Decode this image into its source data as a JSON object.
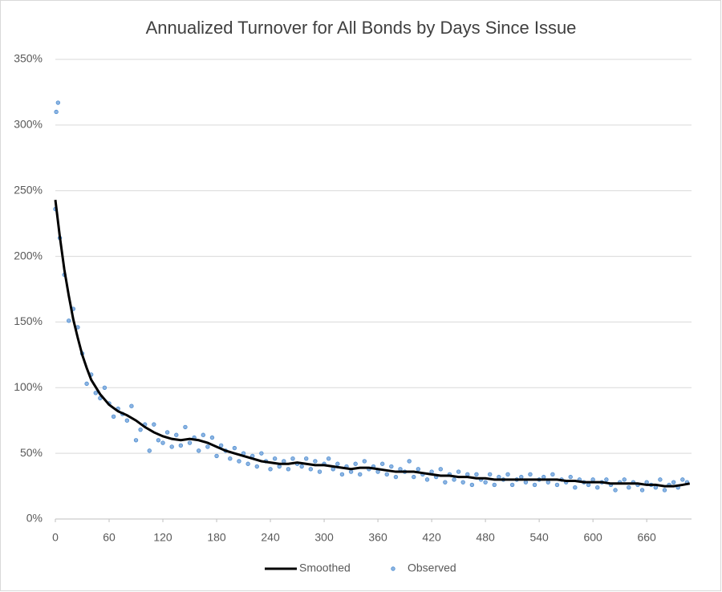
{
  "chart_data": {
    "type": "scatter",
    "title": "Annualized Turnover for All Bonds by Days Since Issue",
    "xlim": [
      0,
      710
    ],
    "xticks": [
      0,
      60,
      120,
      180,
      240,
      300,
      360,
      420,
      480,
      540,
      600,
      660
    ],
    "ylim": [
      0,
      350
    ],
    "yticks": [
      {
        "value": 0,
        "label": "0%"
      },
      {
        "value": 50,
        "label": "50%"
      },
      {
        "value": 100,
        "label": "100%"
      },
      {
        "value": 150,
        "label": "150%"
      },
      {
        "value": 200,
        "label": "200%"
      },
      {
        "value": 250,
        "label": "250%"
      },
      {
        "value": 300,
        "label": "300%"
      },
      {
        "value": 350,
        "label": "350%"
      }
    ],
    "grid": true,
    "legend": "bottom",
    "series": [
      {
        "name": "Smoothed",
        "kind": "line",
        "color": "#000000",
        "x": [
          0,
          5,
          10,
          15,
          20,
          25,
          30,
          35,
          40,
          50,
          60,
          70,
          80,
          90,
          100,
          110,
          120,
          130,
          140,
          150,
          160,
          170,
          180,
          190,
          200,
          210,
          220,
          230,
          240,
          250,
          260,
          270,
          280,
          290,
          300,
          310,
          320,
          330,
          340,
          350,
          360,
          370,
          380,
          390,
          400,
          410,
          420,
          430,
          440,
          450,
          460,
          470,
          480,
          490,
          500,
          510,
          520,
          530,
          540,
          550,
          560,
          570,
          580,
          590,
          600,
          610,
          620,
          630,
          640,
          650,
          660,
          670,
          680,
          690,
          700,
          708
        ],
        "values": [
          243,
          215,
          190,
          170,
          152,
          138,
          125,
          115,
          106,
          95,
          87,
          82,
          79,
          75,
          70,
          66,
          63,
          61,
          60,
          61,
          60,
          58,
          55,
          52,
          50,
          48,
          46,
          44,
          43,
          42,
          42,
          43,
          42,
          41,
          41,
          40,
          39,
          38,
          39,
          39,
          38,
          37,
          36,
          36,
          36,
          35,
          34,
          33,
          33,
          32,
          32,
          31,
          31,
          30,
          30,
          30,
          30,
          30,
          30,
          30,
          30,
          29,
          29,
          28,
          28,
          28,
          27,
          27,
          27,
          27,
          26,
          26,
          25,
          25,
          26,
          27
        ]
      },
      {
        "name": "Observed",
        "kind": "points",
        "color": "#8db4e2",
        "x": [
          1,
          3,
          0,
          5,
          10,
          15,
          20,
          25,
          30,
          35,
          40,
          45,
          50,
          55,
          60,
          65,
          70,
          75,
          80,
          85,
          90,
          95,
          100,
          105,
          110,
          115,
          120,
          125,
          130,
          135,
          140,
          145,
          150,
          155,
          160,
          165,
          170,
          175,
          180,
          185,
          190,
          195,
          200,
          205,
          210,
          215,
          220,
          225,
          230,
          235,
          240,
          245,
          250,
          255,
          260,
          265,
          270,
          275,
          280,
          285,
          290,
          295,
          300,
          305,
          310,
          315,
          320,
          325,
          330,
          335,
          340,
          345,
          350,
          355,
          360,
          365,
          370,
          375,
          380,
          385,
          390,
          395,
          400,
          405,
          410,
          415,
          420,
          425,
          430,
          435,
          440,
          445,
          450,
          455,
          460,
          465,
          470,
          475,
          480,
          485,
          490,
          495,
          500,
          505,
          510,
          515,
          520,
          525,
          530,
          535,
          540,
          545,
          550,
          555,
          560,
          565,
          570,
          575,
          580,
          585,
          590,
          595,
          600,
          605,
          610,
          615,
          620,
          625,
          630,
          635,
          640,
          645,
          650,
          655,
          660,
          665,
          670,
          675,
          680,
          685,
          690,
          695,
          700,
          705
        ],
        "values": [
          310,
          317,
          236,
          214,
          186,
          151,
          160,
          146,
          126,
          103,
          110,
          96,
          92,
          100,
          88,
          78,
          84,
          80,
          75,
          86,
          60,
          68,
          72,
          52,
          72,
          60,
          58,
          66,
          55,
          64,
          56,
          70,
          58,
          62,
          52,
          64,
          55,
          62,
          48,
          56,
          52,
          46,
          54,
          44,
          50,
          42,
          48,
          40,
          50,
          44,
          38,
          46,
          40,
          44,
          38,
          46,
          42,
          40,
          46,
          38,
          44,
          36,
          42,
          46,
          38,
          42,
          34,
          40,
          36,
          42,
          34,
          44,
          38,
          40,
          36,
          42,
          34,
          40,
          32,
          38,
          36,
          44,
          32,
          38,
          34,
          30,
          36,
          32,
          38,
          28,
          34,
          30,
          36,
          28,
          34,
          26,
          34,
          30,
          28,
          34,
          26,
          32,
          30,
          34,
          26,
          30,
          32,
          28,
          34,
          26,
          30,
          32,
          28,
          34,
          26,
          30,
          28,
          32,
          24,
          30,
          28,
          26,
          30,
          24,
          28,
          30,
          26,
          22,
          28,
          30,
          24,
          28,
          26,
          22,
          28,
          26,
          24,
          30,
          22,
          26,
          28,
          24,
          30,
          28
        ]
      }
    ]
  }
}
